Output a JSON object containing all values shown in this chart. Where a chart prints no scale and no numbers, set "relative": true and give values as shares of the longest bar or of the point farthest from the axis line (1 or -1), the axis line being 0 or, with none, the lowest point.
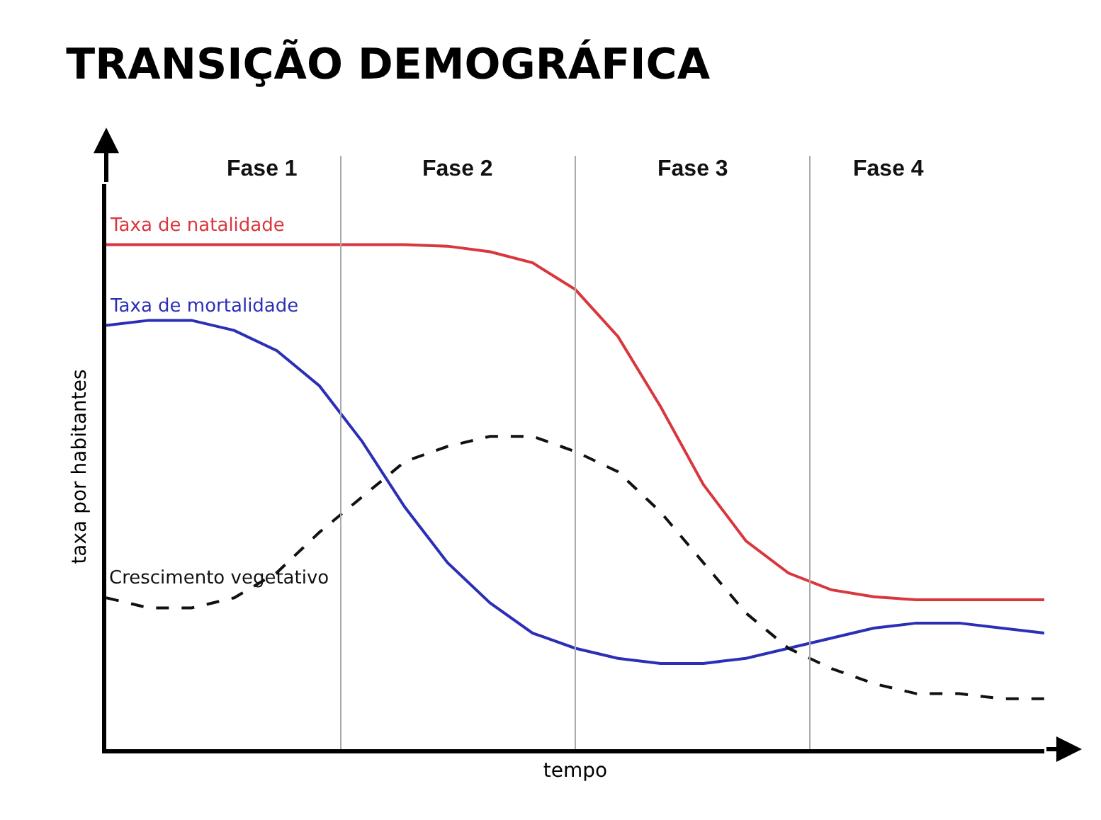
{
  "chart_data": {
    "type": "line",
    "title": "TRANSIÇÃO DEMOGRÁFICA",
    "xlabel": "tempo",
    "ylabel": "taxa por habitantes",
    "relative": true,
    "categories": [
      null,
      null,
      null,
      null,
      null,
      null,
      null,
      null,
      null,
      null,
      null,
      null,
      null,
      null,
      null,
      null,
      null,
      null,
      null,
      null,
      null,
      null,
      null
    ],
    "series": [
      {
        "name": "Taxa de natalidade",
        "color": "#d9363e",
        "line_style": "solid",
        "values": [
          1,
          1,
          1,
          1,
          1,
          1,
          1,
          1,
          0.997,
          0.986,
          0.964,
          0.911,
          0.818,
          0.679,
          0.525,
          0.413,
          0.349,
          0.316,
          0.302,
          0.296,
          0.296,
          0.296,
          0.296
        ]
      },
      {
        "name": "Taxa de mortalidade",
        "color": "#2b2fb5",
        "line_style": "solid",
        "values": [
          0.84,
          0.85,
          0.85,
          0.83,
          0.79,
          0.72,
          0.61,
          0.48,
          0.37,
          0.29,
          0.23,
          0.2,
          0.18,
          0.17,
          0.17,
          0.18,
          0.2,
          0.22,
          0.24,
          0.25,
          0.25,
          0.24,
          0.23
        ]
      },
      {
        "name": "Crescimento vegetativo",
        "color": "#111111",
        "line_style": "dashed",
        "values": [
          0.3,
          0.28,
          0.28,
          0.3,
          0.35,
          0.43,
          0.5,
          0.57,
          0.6,
          0.62,
          0.62,
          0.59,
          0.55,
          0.47,
          0.37,
          0.27,
          0.2,
          0.16,
          0.13,
          0.11,
          0.11,
          0.1,
          0.1
        ]
      }
    ],
    "annotations": [
      "Fase 1",
      "Fase 2",
      "Fase 3",
      "Fase 4"
    ],
    "legend": false,
    "marker": "none"
  }
}
